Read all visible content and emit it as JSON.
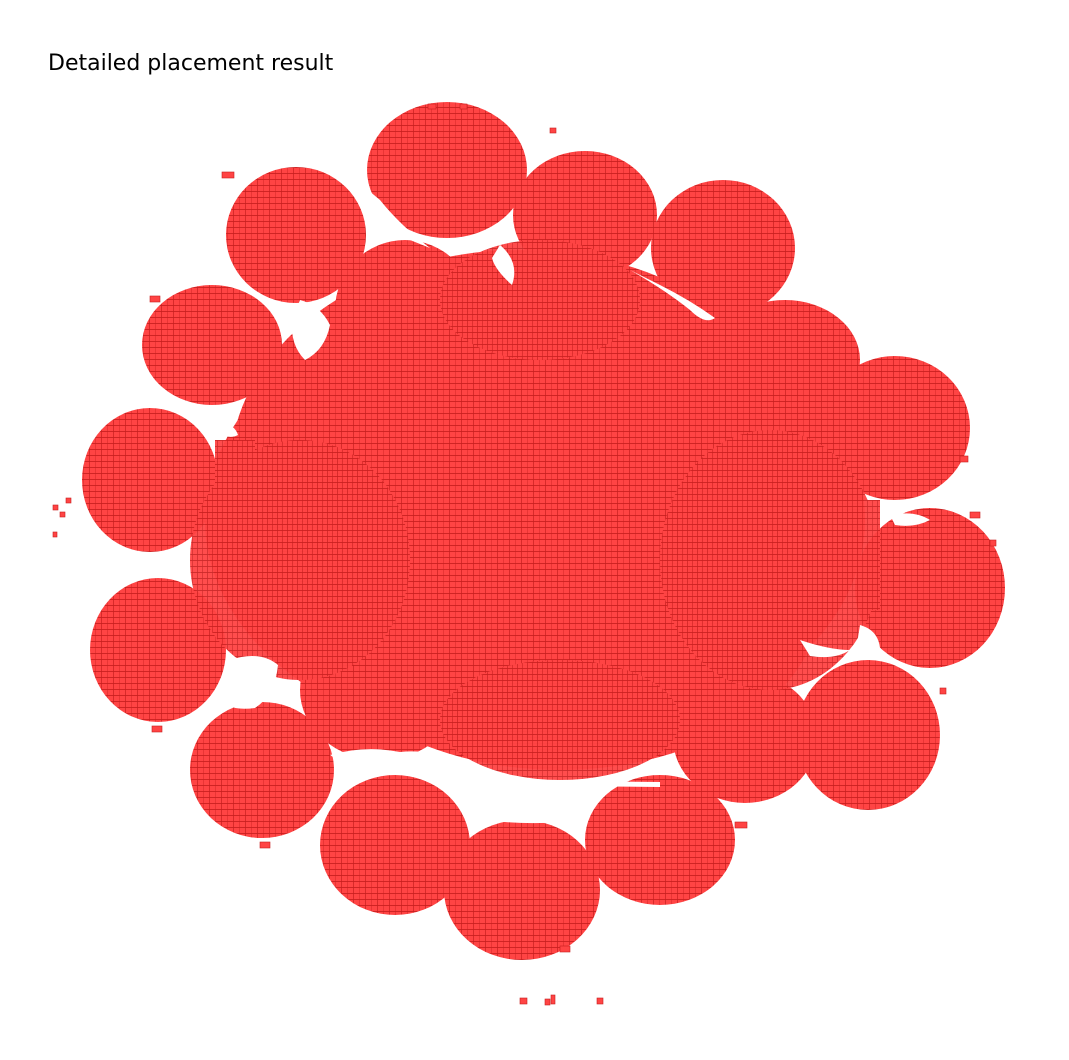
{
  "title": "Detailed placement result",
  "colors": {
    "cell_fill": "#ff4444",
    "cell_stroke": "#c81e1e",
    "background": "#ffffff"
  }
}
